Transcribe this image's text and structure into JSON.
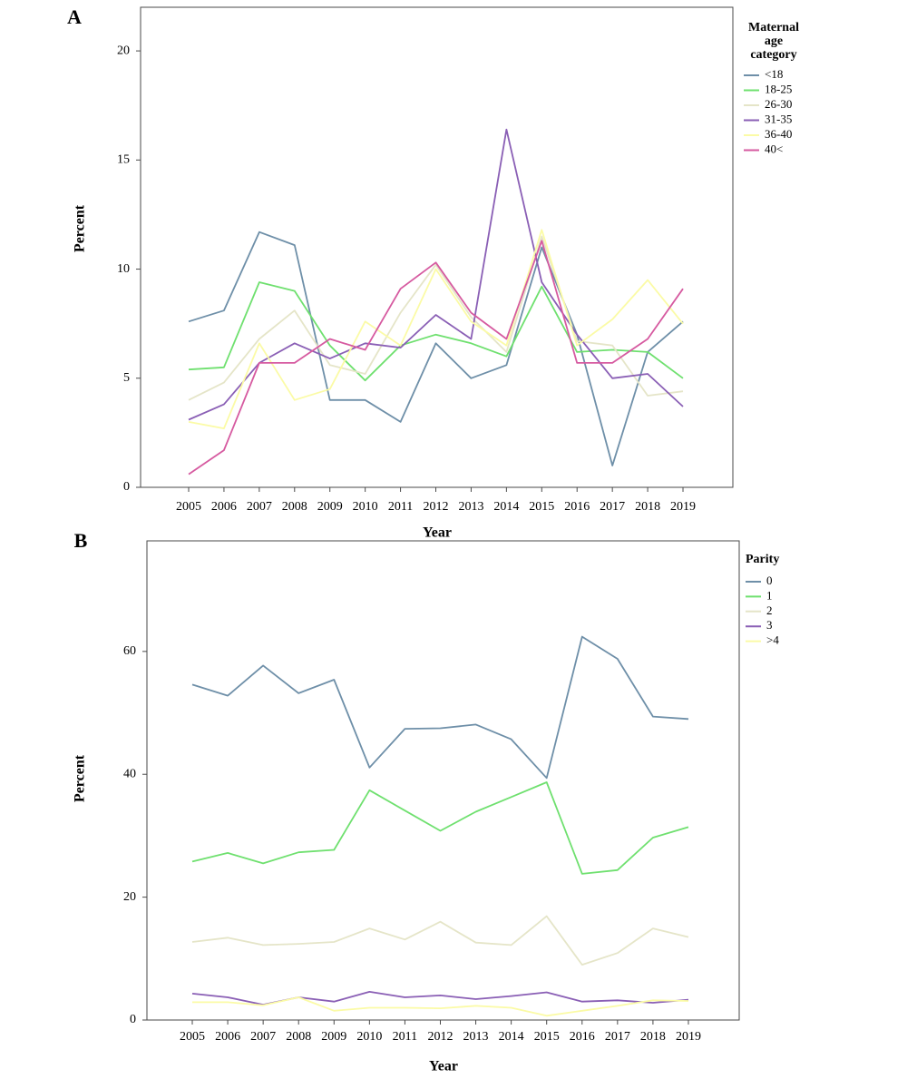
{
  "figure": {
    "panels": [
      {
        "letter": "A"
      },
      {
        "letter": "B"
      }
    ]
  },
  "chart_data": [
    {
      "type": "line",
      "panel": "A",
      "xlabel": "Year",
      "ylabel": "Percent",
      "x": [
        "2005",
        "2006",
        "2007",
        "2008",
        "2009",
        "2010",
        "2011",
        "2012",
        "2013",
        "2014",
        "2015",
        "2016",
        "2017",
        "2018",
        "2019"
      ],
      "ylim": [
        0,
        22
      ],
      "yticks": [
        0,
        5,
        10,
        15,
        20
      ],
      "legend": {
        "title_lines": [
          "Maternal",
          "age",
          "category"
        ],
        "position": "right"
      },
      "series": [
        {
          "name": "<18",
          "color": "#6e8fa8",
          "values": [
            7.6,
            8.1,
            11.7,
            11.1,
            4.0,
            4.0,
            3.0,
            6.6,
            5.0,
            5.6,
            11.0,
            7.0,
            1.0,
            6.2,
            7.6
          ]
        },
        {
          "name": "18-25",
          "color": "#6fe06f",
          "values": [
            5.4,
            5.5,
            9.4,
            9.0,
            6.5,
            4.9,
            6.5,
            7.0,
            6.6,
            6.0,
            9.2,
            6.2,
            6.3,
            6.2,
            5.0
          ]
        },
        {
          "name": "26-30",
          "color": "#e5e5c8",
          "values": [
            4.0,
            4.8,
            6.8,
            8.1,
            5.6,
            5.2,
            8.0,
            10.2,
            7.8,
            6.2,
            11.5,
            6.7,
            6.5,
            4.2,
            4.4
          ]
        },
        {
          "name": "31-35",
          "color": "#8a5fb5",
          "values": [
            3.1,
            3.8,
            5.7,
            6.6,
            5.9,
            6.6,
            6.4,
            7.9,
            6.8,
            16.4,
            9.4,
            7.0,
            5.0,
            5.2,
            3.7
          ]
        },
        {
          "name": "36-40",
          "color": "#fbfba6",
          "values": [
            3.0,
            2.7,
            6.6,
            4.0,
            4.5,
            7.6,
            6.5,
            10.0,
            7.6,
            6.5,
            11.8,
            6.5,
            7.7,
            9.5,
            7.5
          ]
        },
        {
          "name": "40<",
          "color": "#d65aa0",
          "values": [
            0.6,
            1.7,
            5.7,
            5.7,
            6.8,
            6.3,
            9.1,
            10.3,
            8.0,
            6.8,
            11.3,
            5.7,
            5.7,
            6.8,
            9.1
          ]
        }
      ]
    },
    {
      "type": "line",
      "panel": "B",
      "xlabel": "Year",
      "ylabel": "Percent",
      "x": [
        "2005",
        "2006",
        "2007",
        "2008",
        "2009",
        "2010",
        "2011",
        "2012",
        "2013",
        "2014",
        "2015",
        "2016",
        "2017",
        "2018",
        "2019"
      ],
      "ylim": [
        0,
        78
      ],
      "yticks": [
        0,
        20,
        40,
        60
      ],
      "legend": {
        "title_lines": [
          "Parity"
        ],
        "position": "right"
      },
      "series": [
        {
          "name": "0",
          "color": "#6e8fa8",
          "values": [
            54.6,
            52.8,
            57.7,
            53.2,
            55.4,
            41.1,
            47.4,
            47.5,
            48.1,
            45.7,
            39.4,
            62.4,
            58.8,
            49.4,
            49.0
          ]
        },
        {
          "name": "1",
          "color": "#6fe06f",
          "values": [
            25.8,
            27.2,
            25.5,
            27.3,
            27.7,
            37.4,
            34.1,
            30.8,
            33.9,
            36.3,
            38.7,
            23.8,
            24.4,
            29.7,
            31.4
          ]
        },
        {
          "name": "2",
          "color": "#e5e5c8",
          "values": [
            12.7,
            13.4,
            12.2,
            12.4,
            12.7,
            14.9,
            13.1,
            16.0,
            12.6,
            12.2,
            16.9,
            9.0,
            10.9,
            14.9,
            13.5
          ]
        },
        {
          "name": "3",
          "color": "#8a5fb5",
          "values": [
            4.3,
            3.7,
            2.5,
            3.7,
            3.0,
            4.6,
            3.7,
            4.0,
            3.4,
            3.9,
            4.5,
            3.0,
            3.2,
            2.8,
            3.3
          ]
        },
        {
          "name": ">4",
          "color": "#fbfba6",
          "values": [
            2.9,
            2.9,
            2.4,
            3.7,
            1.5,
            2.0,
            2.0,
            1.9,
            2.3,
            2.0,
            0.7,
            1.5,
            2.3,
            3.2,
            3.1
          ]
        }
      ]
    }
  ]
}
